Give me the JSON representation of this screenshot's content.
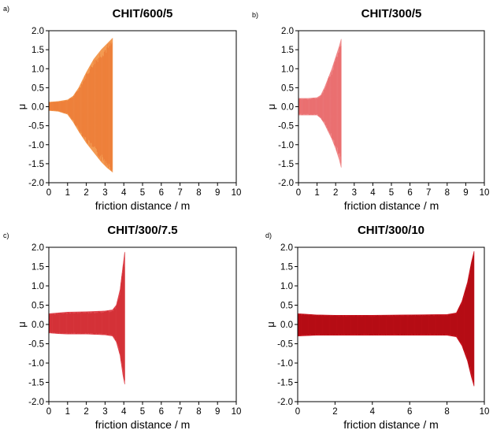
{
  "chart_data": [
    {
      "panel": "a)",
      "type": "area",
      "title": "CHIT/600/5",
      "xlabel": "friction distance / m",
      "ylabel": "μ",
      "xlim": [
        0,
        10
      ],
      "ylim": [
        -2.0,
        2.0
      ],
      "xticks": [
        0,
        1,
        2,
        3,
        4,
        5,
        6,
        7,
        8,
        9,
        10
      ],
      "yticks": [
        -2.0,
        -1.5,
        -1.0,
        -0.5,
        0.0,
        0.5,
        1.0,
        1.5,
        2.0
      ],
      "color": "#f39a52",
      "series": [
        {
          "x": [
            0.0,
            0.5,
            1.0,
            1.3,
            1.6,
            2.0,
            2.4,
            2.8,
            3.1,
            3.4
          ],
          "upper": [
            0.12,
            0.14,
            0.18,
            0.28,
            0.5,
            0.9,
            1.25,
            1.5,
            1.65,
            1.8
          ],
          "lower": [
            -0.1,
            -0.12,
            -0.2,
            -0.4,
            -0.65,
            -0.95,
            -1.2,
            -1.45,
            -1.6,
            -1.72
          ]
        }
      ]
    },
    {
      "panel": "b)",
      "type": "area",
      "title": "CHIT/300/5",
      "xlabel": "friction distance / m",
      "ylabel": "μ",
      "xlim": [
        0,
        10
      ],
      "ylim": [
        -2.0,
        2.0
      ],
      "xticks": [
        0,
        1,
        2,
        3,
        4,
        5,
        6,
        7,
        8,
        9,
        10
      ],
      "yticks": [
        -2.0,
        -1.5,
        -1.0,
        -0.5,
        0.0,
        0.5,
        1.0,
        1.5,
        2.0
      ],
      "color": "#f08b8c",
      "series": [
        {
          "x": [
            0.0,
            0.5,
            1.0,
            1.2,
            1.4,
            1.6,
            1.8,
            2.0,
            2.2,
            2.3
          ],
          "upper": [
            0.22,
            0.22,
            0.24,
            0.3,
            0.5,
            0.75,
            1.0,
            1.3,
            1.6,
            1.78
          ],
          "lower": [
            -0.22,
            -0.22,
            -0.22,
            -0.3,
            -0.45,
            -0.65,
            -0.85,
            -1.1,
            -1.4,
            -1.6
          ]
        }
      ]
    },
    {
      "panel": "c)",
      "type": "area",
      "title": "CHIT/300/7.5",
      "xlabel": "friction distance / m",
      "ylabel": "μ",
      "xlim": [
        0,
        10
      ],
      "ylim": [
        -2.0,
        2.0
      ],
      "xticks": [
        0,
        1,
        2,
        3,
        4,
        5,
        6,
        7,
        8,
        9,
        10
      ],
      "yticks": [
        -2.0,
        -1.5,
        -1.0,
        -0.5,
        0.0,
        0.5,
        1.0,
        1.5,
        2.0
      ],
      "color": "#e0474f",
      "series": [
        {
          "x": [
            0.0,
            0.5,
            1.0,
            2.0,
            3.0,
            3.4,
            3.6,
            3.8,
            3.95,
            4.05
          ],
          "upper": [
            0.28,
            0.3,
            0.32,
            0.33,
            0.35,
            0.38,
            0.5,
            0.9,
            1.5,
            1.88
          ],
          "lower": [
            -0.22,
            -0.24,
            -0.25,
            -0.25,
            -0.27,
            -0.3,
            -0.45,
            -0.8,
            -1.3,
            -1.55
          ]
        }
      ]
    },
    {
      "panel": "d)",
      "type": "area",
      "title": "CHIT/300/10",
      "xlabel": "friction distance / m",
      "ylabel": "μ",
      "xlim": [
        0,
        10
      ],
      "ylim": [
        -2.0,
        2.0
      ],
      "xticks": [
        0,
        2,
        4,
        6,
        8,
        10
      ],
      "yticks": [
        -2.0,
        -1.5,
        -1.0,
        -0.5,
        0.0,
        0.5,
        1.0,
        1.5,
        2.0
      ],
      "color": "#c8141f",
      "series": [
        {
          "x": [
            0.0,
            1.0,
            2.0,
            4.0,
            6.0,
            8.0,
            8.5,
            8.8,
            9.1,
            9.3,
            9.45
          ],
          "upper": [
            0.28,
            0.25,
            0.24,
            0.24,
            0.25,
            0.26,
            0.3,
            0.6,
            1.1,
            1.6,
            1.9
          ],
          "lower": [
            -0.3,
            -0.28,
            -0.28,
            -0.28,
            -0.28,
            -0.28,
            -0.32,
            -0.55,
            -0.95,
            -1.35,
            -1.6
          ]
        }
      ]
    }
  ]
}
